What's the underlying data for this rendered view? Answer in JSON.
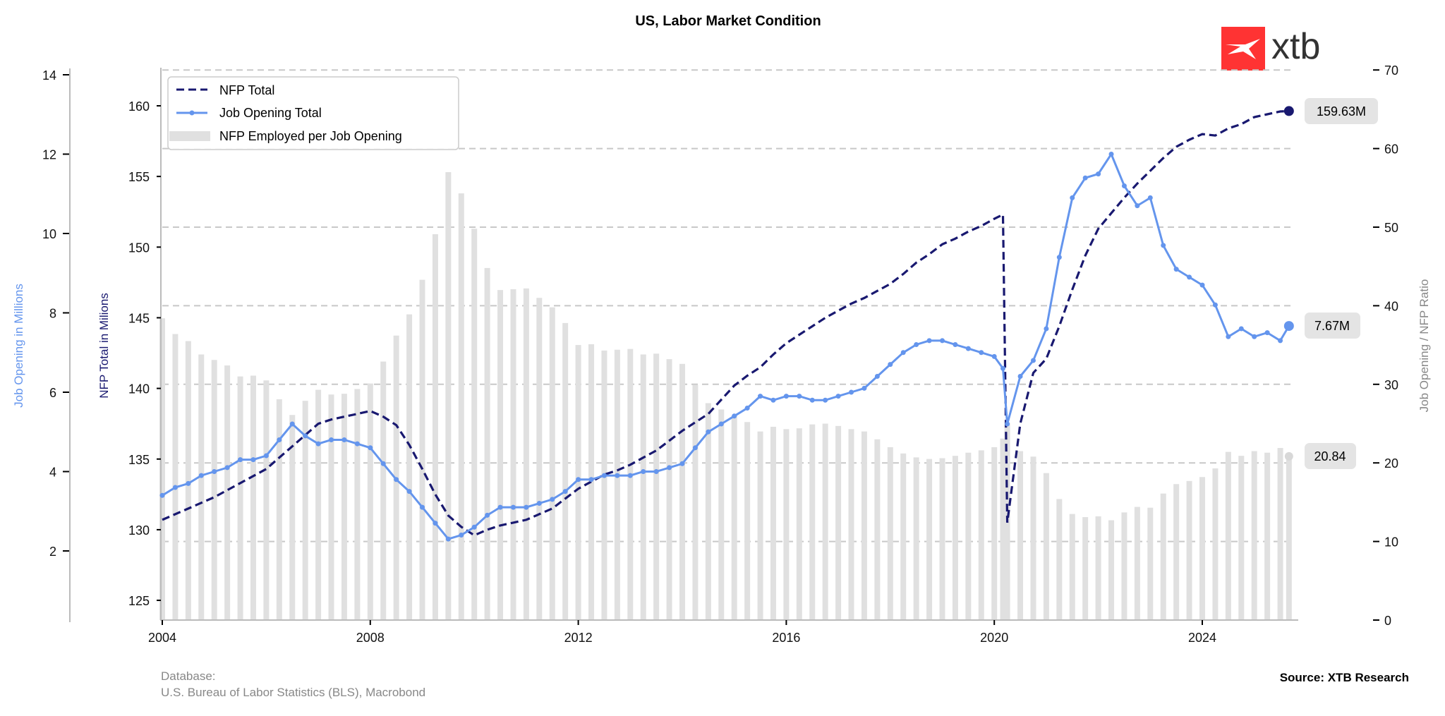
{
  "chart_data": {
    "type": "line",
    "title": "US, Labor Market Condition",
    "x_ticks": [
      "2004",
      "2008",
      "2012",
      "2016",
      "2020",
      "2024"
    ],
    "axes": {
      "left_outer": {
        "label": "Job Opening in Millions",
        "ticks": [
          2,
          4,
          6,
          8,
          10,
          12,
          14
        ],
        "ylim": [
          0.6,
          14.2
        ],
        "color": "#6495ED"
      },
      "left_inner": {
        "label": "NFP Total in Milions",
        "ticks": [
          125,
          130,
          135,
          140,
          145,
          150,
          155,
          160
        ],
        "ylim": [
          123.5,
          162.5
        ],
        "color": "#191970"
      },
      "right": {
        "label": "Job Opening / NFP Ratio",
        "ticks": [
          0,
          10,
          20,
          30,
          40,
          50,
          60,
          70
        ],
        "ylim": [
          0,
          70
        ],
        "color": "#888888"
      }
    },
    "grid": "horizontal dashed at right-axis ticks",
    "legend": {
      "position": "top-left",
      "entries": [
        "NFP Total",
        "Job Opening Total",
        "NFP Employed per Job Opening"
      ]
    },
    "dates": [
      "2004-01",
      "2004-04",
      "2004-07",
      "2004-10",
      "2005-01",
      "2005-04",
      "2005-07",
      "2005-10",
      "2006-01",
      "2006-04",
      "2006-07",
      "2006-10",
      "2007-01",
      "2007-04",
      "2007-07",
      "2007-10",
      "2008-01",
      "2008-04",
      "2008-07",
      "2008-10",
      "2009-01",
      "2009-04",
      "2009-07",
      "2009-10",
      "2010-01",
      "2010-04",
      "2010-07",
      "2010-10",
      "2011-01",
      "2011-04",
      "2011-07",
      "2011-10",
      "2012-01",
      "2012-04",
      "2012-07",
      "2012-10",
      "2013-01",
      "2013-04",
      "2013-07",
      "2013-10",
      "2014-01",
      "2014-04",
      "2014-07",
      "2014-10",
      "2015-01",
      "2015-04",
      "2015-07",
      "2015-10",
      "2016-01",
      "2016-04",
      "2016-07",
      "2016-10",
      "2017-01",
      "2017-04",
      "2017-07",
      "2017-10",
      "2018-01",
      "2018-04",
      "2018-07",
      "2018-10",
      "2019-01",
      "2019-04",
      "2019-07",
      "2019-10",
      "2020-01",
      "2020-03",
      "2020-04",
      "2020-07",
      "2020-10",
      "2021-01",
      "2021-04",
      "2021-07",
      "2021-10",
      "2022-01",
      "2022-04",
      "2022-07",
      "2022-10",
      "2023-01",
      "2023-04",
      "2023-07",
      "2023-10",
      "2024-01",
      "2024-04",
      "2024-07",
      "2024-10",
      "2025-01",
      "2025-04",
      "2025-07",
      "2025-09"
    ],
    "series": [
      {
        "name": "NFP Total",
        "axis": "left_inner",
        "style": "dashed",
        "color": "#191970",
        "values": [
          130.7,
          131.1,
          131.5,
          131.9,
          132.3,
          132.8,
          133.3,
          133.8,
          134.3,
          135.1,
          135.9,
          136.7,
          137.5,
          137.8,
          138.0,
          138.2,
          138.4,
          138.0,
          137.4,
          136.0,
          134.3,
          132.5,
          131.0,
          130.2,
          129.6,
          130.0,
          130.3,
          130.5,
          130.7,
          131.1,
          131.5,
          132.2,
          132.9,
          133.4,
          133.9,
          134.2,
          134.6,
          135.1,
          135.6,
          136.3,
          137.0,
          137.6,
          138.2,
          139.2,
          140.2,
          140.9,
          141.5,
          142.4,
          143.2,
          143.8,
          144.4,
          145.0,
          145.5,
          146.0,
          146.4,
          146.9,
          147.4,
          148.1,
          148.9,
          149.5,
          150.2,
          150.6,
          151.1,
          151.5,
          152.0,
          152.3,
          130.5,
          137.5,
          141.1,
          142.1,
          144.4,
          147.0,
          149.4,
          151.3,
          152.4,
          153.5,
          154.5,
          155.4,
          156.3,
          157.1,
          157.6,
          158.0,
          157.9,
          158.4,
          158.7,
          159.2,
          159.4,
          159.6,
          159.63
        ]
      },
      {
        "name": "Job Opening Total",
        "axis": "left_outer",
        "style": "line-markers",
        "color": "#6495ED",
        "values": [
          3.4,
          3.6,
          3.7,
          3.9,
          4.0,
          4.1,
          4.3,
          4.3,
          4.4,
          4.8,
          5.2,
          4.9,
          4.7,
          4.8,
          4.8,
          4.7,
          4.6,
          4.2,
          3.8,
          3.5,
          3.1,
          2.7,
          2.3,
          2.4,
          2.6,
          2.9,
          3.1,
          3.1,
          3.1,
          3.2,
          3.3,
          3.5,
          3.8,
          3.8,
          3.9,
          3.9,
          3.9,
          4.0,
          4.0,
          4.1,
          4.2,
          4.6,
          5.0,
          5.2,
          5.4,
          5.6,
          5.9,
          5.8,
          5.9,
          5.9,
          5.8,
          5.8,
          5.9,
          6.0,
          6.1,
          6.4,
          6.7,
          7.0,
          7.2,
          7.3,
          7.3,
          7.2,
          7.1,
          7.0,
          6.9,
          6.6,
          5.2,
          6.4,
          6.8,
          7.6,
          9.4,
          10.9,
          11.4,
          11.5,
          12.0,
          11.2,
          10.7,
          10.9,
          9.7,
          9.1,
          8.9,
          8.7,
          8.2,
          7.4,
          7.6,
          7.4,
          7.5,
          7.3,
          7.67
        ]
      },
      {
        "name": "NFP Employed per Job Opening",
        "axis": "right",
        "style": "bar",
        "color": "#e0e0e0",
        "values": [
          38.4,
          36.4,
          35.5,
          33.8,
          33.1,
          32.4,
          31.0,
          31.1,
          30.5,
          28.1,
          26.1,
          27.9,
          29.3,
          28.7,
          28.8,
          29.4,
          30.1,
          32.9,
          36.2,
          38.9,
          43.3,
          49.1,
          57.0,
          54.3,
          49.8,
          44.8,
          42.0,
          42.1,
          42.2,
          41.0,
          39.8,
          37.8,
          35.0,
          35.1,
          34.3,
          34.4,
          34.5,
          33.8,
          33.9,
          33.2,
          32.6,
          29.9,
          27.6,
          26.8,
          26.0,
          25.2,
          24.0,
          24.6,
          24.3,
          24.4,
          24.9,
          25.0,
          24.7,
          24.3,
          24.0,
          23.0,
          22.0,
          21.2,
          20.7,
          20.5,
          20.6,
          20.9,
          21.3,
          21.6,
          22.0,
          23.1,
          25.1,
          21.5,
          20.8,
          18.7,
          15.4,
          13.5,
          13.1,
          13.2,
          12.7,
          13.7,
          14.4,
          14.3,
          16.1,
          17.3,
          17.7,
          18.2,
          19.3,
          21.4,
          20.9,
          21.5,
          21.3,
          21.9,
          20.84
        ]
      }
    ],
    "annotations": {
      "nfp_last": "159.63M",
      "jo_last": "7.67M",
      "ratio_last": "20.84"
    }
  },
  "logo": {
    "text": "xtb",
    "color": "#ff3333"
  },
  "footer": {
    "database_label": "Database:",
    "database_value": "U.S. Bureau of Labor Statistics (BLS), Macrobond",
    "source": "Source: XTB Research"
  }
}
